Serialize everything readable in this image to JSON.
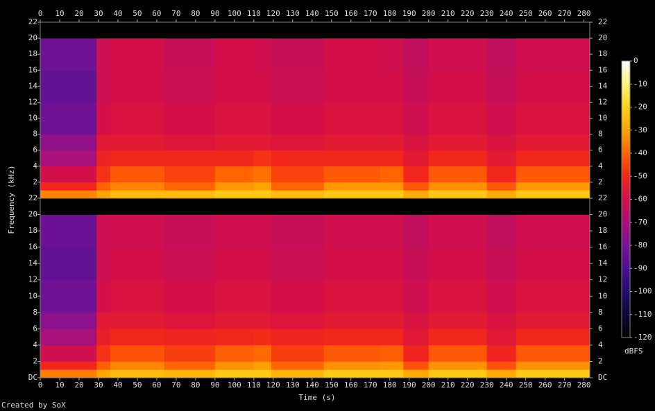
{
  "figure": {
    "ylabel": "Frequency (kHz)",
    "xlabel": "Time (s)",
    "credit": "Created by SoX"
  },
  "colorbar": {
    "label": "dBFS",
    "lim": [
      -120,
      0
    ],
    "ticks": [
      0,
      -10,
      -20,
      -30,
      -40,
      -50,
      -60,
      -70,
      -80,
      -90,
      -100,
      -110,
      -120
    ],
    "colors": [
      "#ffffff",
      "#fff27a",
      "#ffd21a",
      "#ffa400",
      "#ff6400",
      "#f2261a",
      "#d4104a",
      "#a8107a",
      "#7a1296",
      "#4c1092",
      "#260a6a",
      "#0c0636",
      "#000000"
    ]
  },
  "chart_data": [
    {
      "type": "heatmap",
      "xlim": [
        0,
        283
      ],
      "ylim": [
        0,
        22
      ],
      "xticks": [
        0,
        10,
        20,
        30,
        40,
        50,
        60,
        70,
        80,
        90,
        100,
        110,
        120,
        130,
        140,
        150,
        160,
        170,
        180,
        190,
        200,
        210,
        220,
        230,
        240,
        250,
        260,
        270,
        280
      ],
      "yticks": [
        2,
        4,
        6,
        8,
        10,
        12,
        14,
        16,
        18,
        20,
        22
      ],
      "x": [
        0,
        29,
        36,
        64,
        90,
        110,
        119,
        146,
        175,
        187,
        200,
        230,
        245,
        283
      ],
      "y": [
        0,
        1,
        2,
        4,
        6,
        8,
        12,
        16,
        20,
        22
      ],
      "values": [
        [
          -35,
          -30,
          -25,
          -25,
          -22,
          -22,
          -25,
          -22,
          -22,
          -28,
          -22,
          -28,
          -22
        ],
        [
          -50,
          -40,
          -35,
          -40,
          -32,
          -30,
          -40,
          -32,
          -32,
          -42,
          -33,
          -42,
          -32
        ],
        [
          -60,
          -48,
          -42,
          -45,
          -40,
          -38,
          -45,
          -42,
          -40,
          -50,
          -42,
          -50,
          -42
        ],
        [
          -70,
          -52,
          -50,
          -50,
          -50,
          -48,
          -50,
          -50,
          -50,
          -55,
          -50,
          -55,
          -50
        ],
        [
          -75,
          -55,
          -55,
          -57,
          -55,
          -55,
          -57,
          -55,
          -55,
          -58,
          -55,
          -58,
          -55
        ],
        [
          -82,
          -60,
          -58,
          -60,
          -58,
          -58,
          -60,
          -58,
          -58,
          -61,
          -58,
          -61,
          -58
        ],
        [
          -85,
          -62,
          -60,
          -62,
          -60,
          -60,
          -62,
          -60,
          -60,
          -63,
          -60,
          -63,
          -60
        ],
        [
          -82,
          -62,
          -60,
          -63,
          -60,
          -61,
          -63,
          -60,
          -61,
          -64,
          -61,
          -64,
          -61
        ],
        [
          -120,
          -120,
          -120,
          -120,
          -120,
          -120,
          -120,
          -120,
          -120,
          -120,
          -120,
          -120,
          -120
        ]
      ]
    },
    {
      "type": "heatmap",
      "xlim": [
        0,
        283
      ],
      "ylim": [
        0,
        22
      ],
      "xticks": [
        0,
        10,
        20,
        30,
        40,
        50,
        60,
        70,
        80,
        90,
        100,
        110,
        120,
        130,
        140,
        150,
        160,
        170,
        180,
        190,
        200,
        210,
        220,
        230,
        240,
        250,
        260,
        270,
        280
      ],
      "yticks": [
        {
          "value": 0,
          "label": "DC"
        },
        2,
        4,
        6,
        8,
        10,
        12,
        14,
        16,
        18,
        20,
        22
      ],
      "x": [
        0,
        29,
        36,
        64,
        90,
        110,
        119,
        146,
        175,
        187,
        200,
        230,
        245,
        283
      ],
      "y": [
        0,
        1,
        2,
        4,
        6,
        8,
        12,
        16,
        20,
        22
      ],
      "values": [
        [
          -36,
          -30,
          -25,
          -26,
          -22,
          -22,
          -26,
          -22,
          -22,
          -29,
          -22,
          -29,
          -22
        ],
        [
          -50,
          -41,
          -35,
          -40,
          -33,
          -31,
          -40,
          -33,
          -32,
          -43,
          -33,
          -43,
          -33
        ],
        [
          -61,
          -48,
          -43,
          -46,
          -41,
          -39,
          -46,
          -42,
          -41,
          -51,
          -42,
          -51,
          -42
        ],
        [
          -70,
          -53,
          -50,
          -51,
          -50,
          -49,
          -51,
          -50,
          -50,
          -56,
          -50,
          -56,
          -50
        ],
        [
          -76,
          -55,
          -55,
          -57,
          -55,
          -55,
          -57,
          -55,
          -55,
          -58,
          -55,
          -58,
          -55
        ],
        [
          -82,
          -60,
          -58,
          -60,
          -58,
          -58,
          -60,
          -58,
          -58,
          -61,
          -58,
          -61,
          -58
        ],
        [
          -85,
          -62,
          -60,
          -62,
          -60,
          -60,
          -62,
          -60,
          -60,
          -63,
          -60,
          -63,
          -60
        ],
        [
          -83,
          -62,
          -61,
          -63,
          -61,
          -61,
          -63,
          -61,
          -61,
          -64,
          -61,
          -64,
          -61
        ],
        [
          -120,
          -120,
          -120,
          -120,
          -120,
          -120,
          -120,
          -120,
          -120,
          -120,
          -120,
          -120,
          -120
        ]
      ]
    }
  ]
}
